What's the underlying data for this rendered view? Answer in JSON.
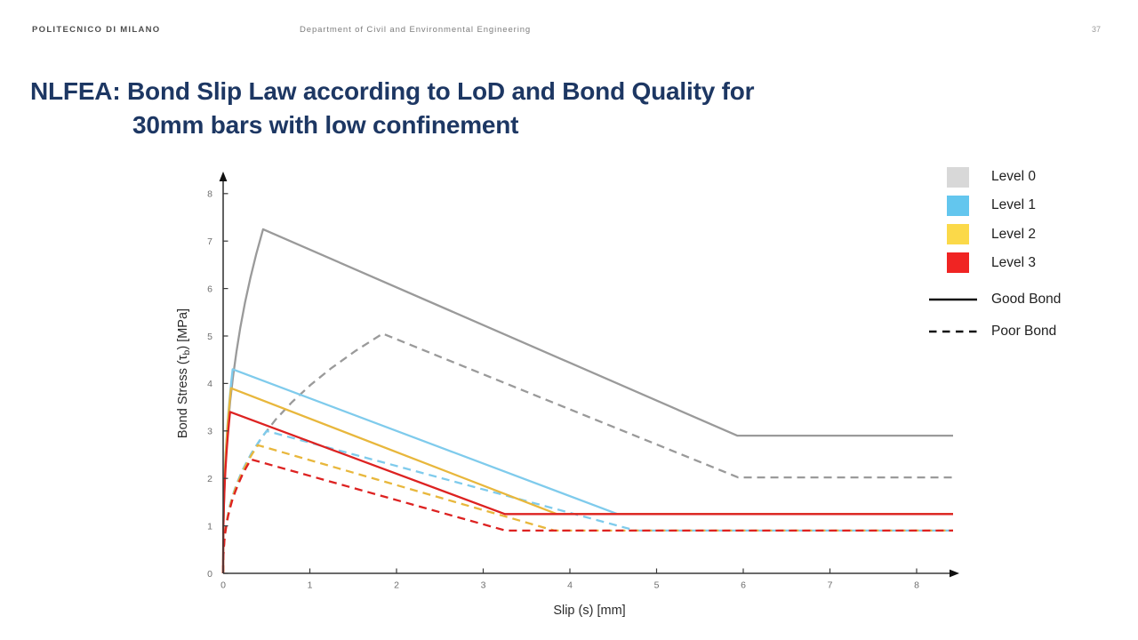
{
  "header": {
    "institution": "POLITECNICO DI MILANO",
    "department": "Department of Civil and Environmental Engineering",
    "page_number": "37"
  },
  "title": {
    "line1": "NLFEA: Bond Slip Law according to LoD and Bond Quality for",
    "line2": "30mm bars with low confinement"
  },
  "chart_data": {
    "type": "line",
    "title": "",
    "xlabel": "Slip (s) [mm]",
    "ylabel": {
      "full": "Bond Stress (τb) [MPa]",
      "prefix": "Bond Stress (τ",
      "sub": "b",
      "suffix": ") [MPa]"
    },
    "xlim": [
      0,
      8.5
    ],
    "ylim": [
      0,
      8.4
    ],
    "xticks": [
      "0",
      "1",
      "2",
      "3",
      "4",
      "5",
      "6",
      "7",
      "8"
    ],
    "yticks": [
      "0",
      "1",
      "2",
      "3",
      "4",
      "5",
      "6",
      "7",
      "8"
    ],
    "grid": false,
    "axis_arrows": true,
    "legend": {
      "position": "top-right",
      "levels": [
        {
          "label": "Level 0",
          "color": "#d8d8d8"
        },
        {
          "label": "Level 1",
          "color": "#63c6ee"
        },
        {
          "label": "Level 2",
          "color": "#fbd949"
        },
        {
          "label": "Level 3",
          "color": "#f02423"
        }
      ],
      "styles": [
        {
          "label": "Good Bond",
          "dashed": false
        },
        {
          "label": "Poor Bond",
          "dashed": true
        }
      ]
    },
    "series_note": "Each curve: power-law rise tau=tau_max*(s/s1)^alpha up to (s1,tau_max), linear softening to (s3,tau_f), then constant residual tau_f to s_end",
    "series": [
      {
        "name": "Level 0 Good Bond",
        "level": "Level 0",
        "bond": "Good Bond",
        "color": "#9a9a9a",
        "dashed": false,
        "alpha": 0.4,
        "s1": 0.46,
        "tau_max": 7.25,
        "s3": 5.93,
        "tau_f": 2.9,
        "s_end": 8.42
      },
      {
        "name": "Level 0 Poor Bond",
        "level": "Level 0",
        "bond": "Poor Bond",
        "color": "#9a9a9a",
        "dashed": true,
        "alpha": 0.4,
        "s1": 1.84,
        "tau_max": 5.05,
        "s3": 5.94,
        "tau_f": 2.02,
        "s_end": 8.42
      },
      {
        "name": "Level 1 Good Bond",
        "level": "Level 1",
        "bond": "Good Bond",
        "color": "#7fcbec",
        "dashed": false,
        "alpha": 0.4,
        "s1": 0.11,
        "tau_max": 4.3,
        "s3": 4.55,
        "tau_f": 1.25,
        "s_end": 8.42
      },
      {
        "name": "Level 1 Poor Bond",
        "level": "Level 1",
        "bond": "Poor Bond",
        "color": "#7fcbec",
        "dashed": true,
        "alpha": 0.4,
        "s1": 0.5,
        "tau_max": 3.0,
        "s3": 4.76,
        "tau_f": 0.9,
        "s_end": 8.42
      },
      {
        "name": "Level 2 Good Bond",
        "level": "Level 2",
        "bond": "Good Bond",
        "color": "#e8b73c",
        "dashed": false,
        "alpha": 0.4,
        "s1": 0.09,
        "tau_max": 3.9,
        "s3": 3.85,
        "tau_f": 1.25,
        "s_end": 8.42
      },
      {
        "name": "Level 2 Poor Bond",
        "level": "Level 2",
        "bond": "Poor Bond",
        "color": "#e8b73c",
        "dashed": true,
        "alpha": 0.4,
        "s1": 0.4,
        "tau_max": 2.7,
        "s3": 3.82,
        "tau_f": 0.9,
        "s_end": 8.42
      },
      {
        "name": "Level 3 Good Bond",
        "level": "Level 3",
        "bond": "Good Bond",
        "color": "#dd2221",
        "dashed": false,
        "alpha": 0.4,
        "s1": 0.08,
        "tau_max": 3.4,
        "s3": 3.25,
        "tau_f": 1.25,
        "s_end": 8.42
      },
      {
        "name": "Level 3 Poor Bond",
        "level": "Level 3",
        "bond": "Poor Bond",
        "color": "#dd2221",
        "dashed": true,
        "alpha": 0.4,
        "s1": 0.32,
        "tau_max": 2.4,
        "s3": 3.26,
        "tau_f": 0.9,
        "s_end": 8.42
      }
    ]
  }
}
